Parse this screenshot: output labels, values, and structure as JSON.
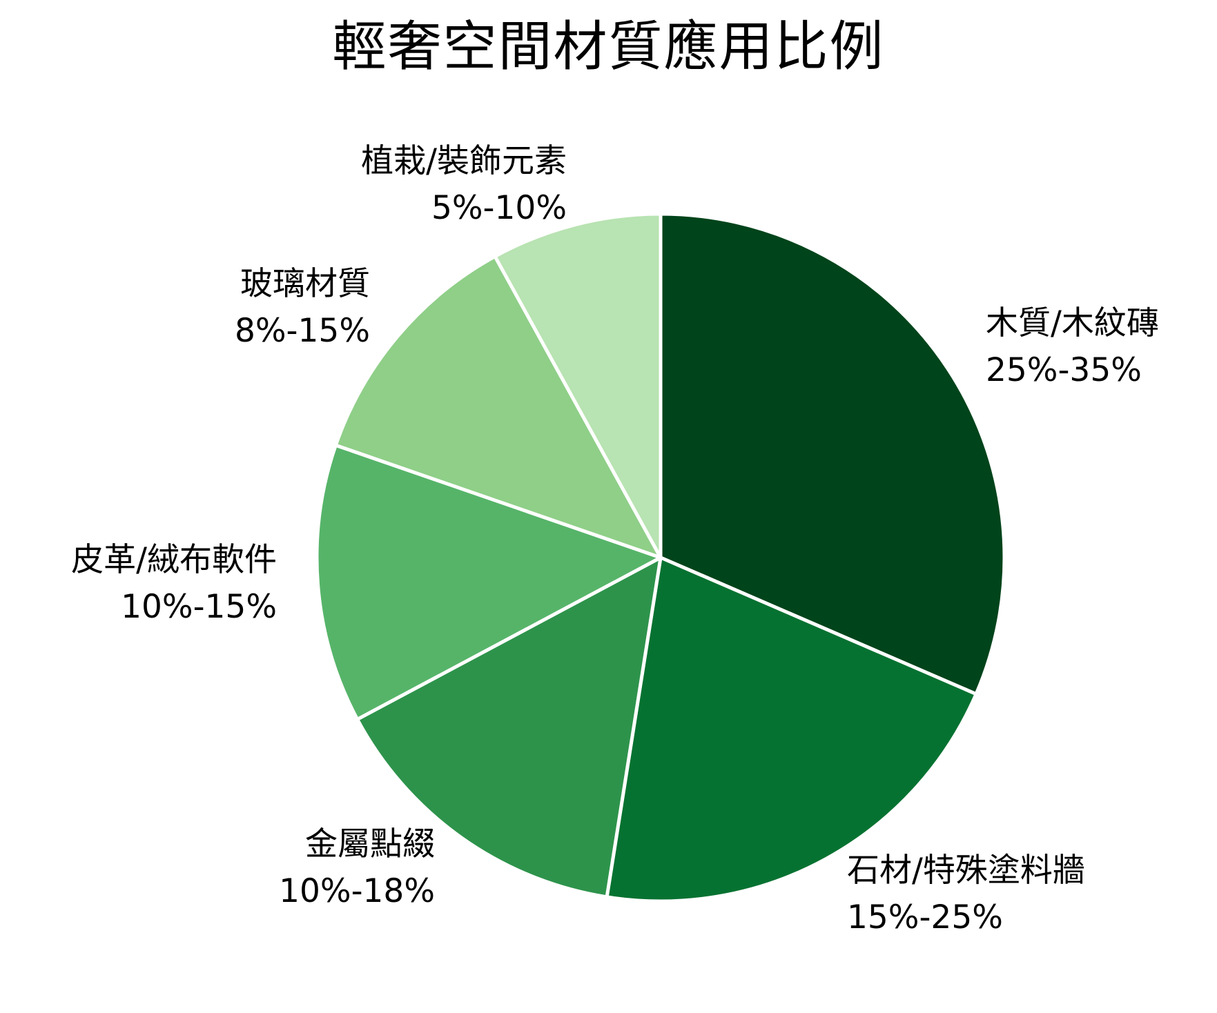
{
  "chart_data": {
    "type": "pie",
    "title": "輕奢空間材質應用比例",
    "start_angle_deg": 0,
    "direction": "clockwise",
    "categories": [
      "木質/木紋磚",
      "石材/特殊塗料牆",
      "金屬點綴",
      "皮革/絨布軟件",
      "玻璃材質",
      "植栽/裝飾元素"
    ],
    "range_labels": [
      "25%-35%",
      "15%-25%",
      "10%-18%",
      "10%-15%",
      "8%-15%",
      "5%-10%"
    ],
    "values": [
      31.5,
      21.0,
      14.7,
      13.1,
      11.7,
      8.0
    ],
    "colors": [
      "#00441b",
      "#067231",
      "#2d934b",
      "#56b469",
      "#8fcf88",
      "#b8e3b2"
    ],
    "legend": "none (direct labels)"
  },
  "labels": [
    {
      "name": "木質/木紋磚",
      "range": "25%-35%"
    },
    {
      "name": "石材/特殊塗料牆",
      "range": "15%-25%"
    },
    {
      "name": "金屬點綴",
      "range": "10%-18%"
    },
    {
      "name": "皮革/絨布軟件",
      "range": "10%-15%"
    },
    {
      "name": "玻璃材質",
      "range": "8%-15%"
    },
    {
      "name": "植栽/裝飾元素",
      "range": "5%-10%"
    }
  ]
}
